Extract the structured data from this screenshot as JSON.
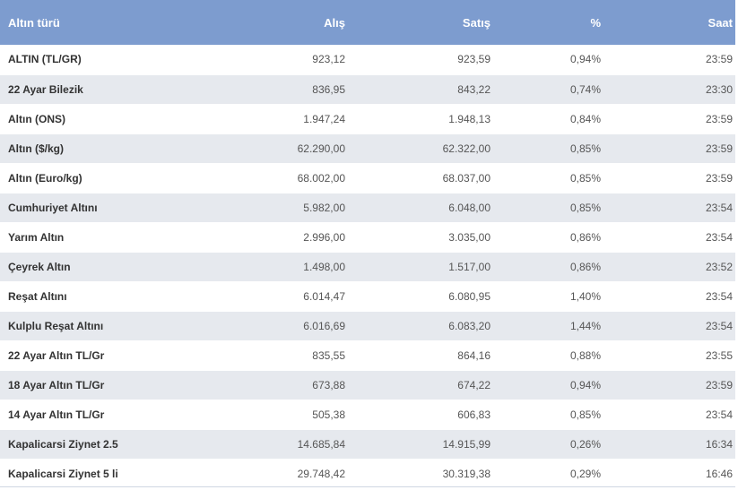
{
  "table": {
    "headers": {
      "name": "Altın türü",
      "buy": "Alış",
      "sell": "Satış",
      "pct": "%",
      "time": "Saat"
    },
    "colors": {
      "header_bg": "#7d9ccf",
      "header_text": "#ffffff",
      "row_alt_bg": "#e6e9ee"
    },
    "rows": [
      {
        "name": "ALTIN (TL/GR)",
        "buy": "923,12",
        "sell": "923,59",
        "pct": "0,94%",
        "time": "23:59"
      },
      {
        "name": "22 Ayar Bilezik",
        "buy": "836,95",
        "sell": "843,22",
        "pct": "0,74%",
        "time": "23:30"
      },
      {
        "name": "Altın (ONS)",
        "buy": "1.947,24",
        "sell": "1.948,13",
        "pct": "0,84%",
        "time": "23:59"
      },
      {
        "name": "Altın ($/kg)",
        "buy": "62.290,00",
        "sell": "62.322,00",
        "pct": "0,85%",
        "time": "23:59"
      },
      {
        "name": "Altın (Euro/kg)",
        "buy": "68.002,00",
        "sell": "68.037,00",
        "pct": "0,85%",
        "time": "23:59"
      },
      {
        "name": "Cumhuriyet Altını",
        "buy": "5.982,00",
        "sell": "6.048,00",
        "pct": "0,85%",
        "time": "23:54"
      },
      {
        "name": "Yarım Altın",
        "buy": "2.996,00",
        "sell": "3.035,00",
        "pct": "0,86%",
        "time": "23:54"
      },
      {
        "name": "Çeyrek Altın",
        "buy": "1.498,00",
        "sell": "1.517,00",
        "pct": "0,86%",
        "time": "23:52"
      },
      {
        "name": "Reşat Altını",
        "buy": "6.014,47",
        "sell": "6.080,95",
        "pct": "1,40%",
        "time": "23:54"
      },
      {
        "name": "Kulplu Reşat Altını",
        "buy": "6.016,69",
        "sell": "6.083,20",
        "pct": "1,44%",
        "time": "23:54"
      },
      {
        "name": "22 Ayar Altın TL/Gr",
        "buy": "835,55",
        "sell": "864,16",
        "pct": "0,88%",
        "time": "23:55"
      },
      {
        "name": "18 Ayar Altın TL/Gr",
        "buy": "673,88",
        "sell": "674,22",
        "pct": "0,94%",
        "time": "23:59"
      },
      {
        "name": "14 Ayar Altın TL/Gr",
        "buy": "505,38",
        "sell": "606,83",
        "pct": "0,85%",
        "time": "23:54"
      },
      {
        "name": "Kapalicarsi Ziynet 2.5",
        "buy": "14.685,84",
        "sell": "14.915,99",
        "pct": "0,26%",
        "time": "16:34"
      },
      {
        "name": "Kapalicarsi Ziynet 5 li",
        "buy": "29.748,42",
        "sell": "30.319,38",
        "pct": "0,29%",
        "time": "16:46"
      }
    ]
  }
}
